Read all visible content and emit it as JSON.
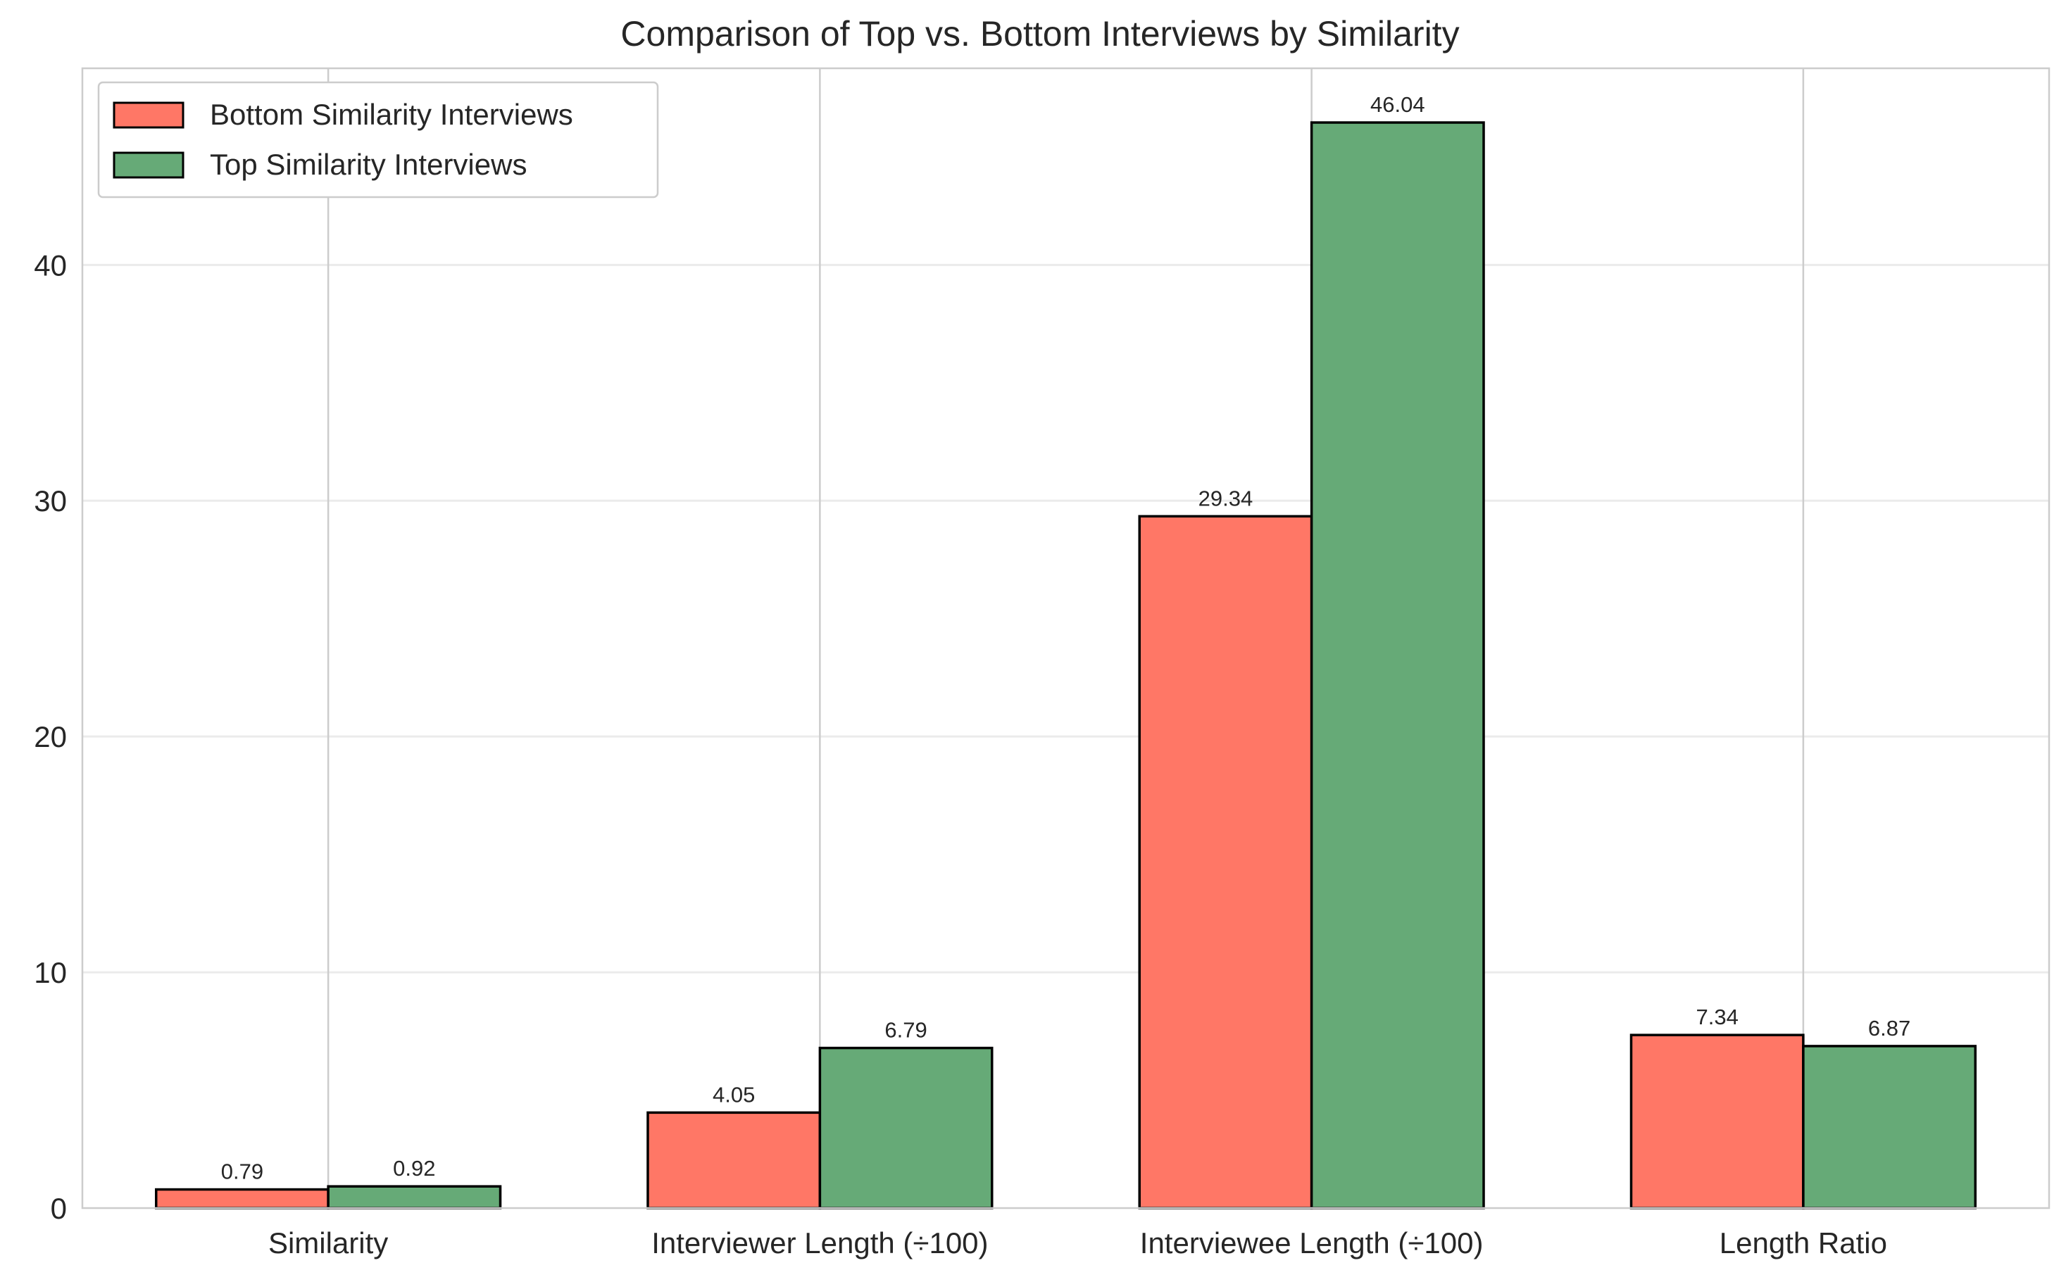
{
  "chart_data": {
    "type": "bar",
    "title": "Comparison of Top vs. Bottom Interviews by Similarity",
    "xlabel": "",
    "ylabel": "",
    "categories": [
      "Similarity",
      "Interviewer Length (÷100)",
      "Interviewee Length (÷100)",
      "Length Ratio"
    ],
    "series": [
      {
        "name": "Bottom Similarity Interviews",
        "color": "#FF7766",
        "values": [
          0.79,
          4.05,
          29.34,
          7.34
        ],
        "labels": [
          "0.79",
          "4.05",
          "29.34",
          "7.34"
        ]
      },
      {
        "name": "Top Similarity Interviews",
        "color": "#66AA77",
        "values": [
          0.92,
          6.79,
          46.04,
          6.87
        ],
        "labels": [
          "0.92",
          "6.79",
          "46.04",
          "6.87"
        ]
      }
    ],
    "ylim": [
      0,
      48.34
    ],
    "yticks": [
      0,
      10,
      20,
      30,
      40
    ],
    "grid": true,
    "legend_position": "top-left"
  }
}
